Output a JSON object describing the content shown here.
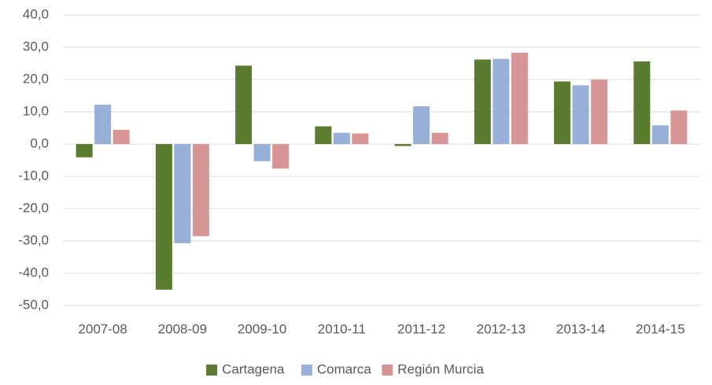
{
  "chart_data": {
    "type": "bar",
    "categories": [
      "2007-08",
      "2008-09",
      "2009-10",
      "2010-11",
      "2011-12",
      "2012-13",
      "2013-14",
      "2014-15"
    ],
    "series": [
      {
        "name": "Cartagena",
        "color": "#5b7b2e",
        "values": [
          -4.1,
          -45.1,
          24.3,
          5.5,
          -0.6,
          26.2,
          19.4,
          25.6
        ]
      },
      {
        "name": "Comarca",
        "color": "#98afd8",
        "values": [
          12.2,
          -30.7,
          -5.3,
          3.5,
          11.7,
          26.4,
          18.2,
          5.8
        ]
      },
      {
        "name": "Región Murcia",
        "color": "#d89596",
        "values": [
          4.4,
          -28.5,
          -7.6,
          3.3,
          3.5,
          28.3,
          20.0,
          10.4
        ]
      }
    ],
    "ylim": [
      -50,
      40
    ],
    "yticks": [
      {
        "value": -50,
        "label": "-50,0"
      },
      {
        "value": -40,
        "label": "-40,0"
      },
      {
        "value": -30,
        "label": "-30,0"
      },
      {
        "value": -20,
        "label": "-20,0"
      },
      {
        "value": -10,
        "label": "-10,0"
      },
      {
        "value": 0,
        "label": "0,0"
      },
      {
        "value": 10,
        "label": "10,0"
      },
      {
        "value": 20,
        "label": "20,0"
      },
      {
        "value": 30,
        "label": "30,0"
      },
      {
        "value": 40,
        "label": "40,0"
      }
    ],
    "grid": true,
    "legend": "bottom"
  }
}
